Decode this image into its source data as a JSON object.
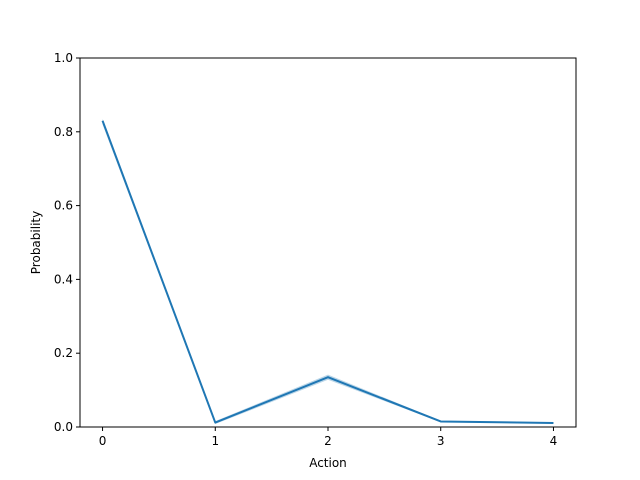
{
  "chart_data": {
    "type": "line",
    "title": "",
    "xlabel": "Action",
    "ylabel": "Probability",
    "x": [
      0,
      1,
      2,
      3,
      4
    ],
    "xlim": [
      -0.2,
      4.2
    ],
    "ylim": [
      0.0,
      1.0
    ],
    "xticks": [
      "0",
      "1",
      "2",
      "3",
      "4"
    ],
    "yticks": [
      "0.0",
      "0.2",
      "0.4",
      "0.6",
      "0.8",
      "1.0"
    ],
    "grid": false,
    "legend": "none",
    "series": [
      {
        "values": [
          0.83,
          0.012,
          0.135,
          0.015,
          0.011
        ],
        "band_lower": [
          0.82,
          0.008,
          0.128,
          0.013,
          0.009
        ],
        "band_upper": [
          0.835,
          0.016,
          0.142,
          0.017,
          0.013
        ],
        "color": "#1f77b4",
        "band_color": "#1f77b4"
      }
    ]
  }
}
